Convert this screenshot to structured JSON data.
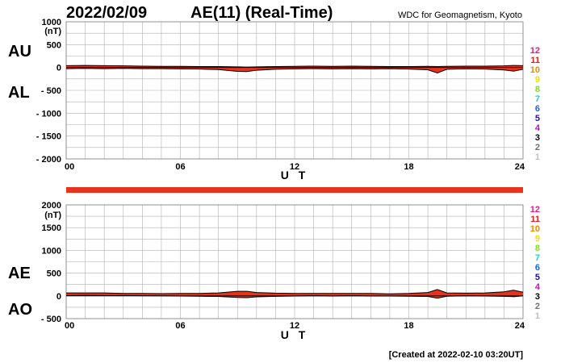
{
  "header": {
    "date": "2022/02/09",
    "title": "AE(11) (Real-Time)",
    "source": "WDC for Geomagnetism, Kyoto"
  },
  "footer": {
    "created": "[Created at 2022-02-10 03:20UT]"
  },
  "colors": {
    "fill": "#e8321c",
    "outline": "#000000",
    "grid": "#b0b0b0",
    "zero_line": "#000000",
    "bar": "#e8321c"
  },
  "station_scale": [
    {
      "label": "12",
      "color": "#e0208a"
    },
    {
      "label": "11",
      "color": "#e02020"
    },
    {
      "label": "10",
      "color": "#f08a00"
    },
    {
      "label": "9",
      "color": "#f0e000"
    },
    {
      "label": "8",
      "color": "#80e020"
    },
    {
      "label": "7",
      "color": "#20d0d0"
    },
    {
      "label": "6",
      "color": "#2060f0"
    },
    {
      "label": "5",
      "color": "#2010b0"
    },
    {
      "label": "4",
      "color": "#c010c0"
    },
    {
      "label": "3",
      "color": "#000000"
    },
    {
      "label": "2",
      "color": "#707070"
    },
    {
      "label": "1",
      "color": "#c0c0c0"
    }
  ],
  "chart_data": [
    {
      "type": "area",
      "panel": "top",
      "labels": [
        "AU",
        "AL"
      ],
      "unit": "(nT)",
      "xlabel": "U T",
      "xlim": [
        0,
        24
      ],
      "xticks": [
        "00",
        "06",
        "12",
        "18",
        "24"
      ],
      "ylim": [
        -2000,
        1000
      ],
      "yticks": [
        {
          "value": 1000,
          "label": "1000"
        },
        {
          "value": 500,
          "label": "500"
        },
        {
          "value": 0,
          "label": "0"
        },
        {
          "value": -500,
          "label": "- 500"
        },
        {
          "value": -1000,
          "label": "- 1000"
        },
        {
          "value": -1500,
          "label": "- 1500"
        },
        {
          "value": -2000,
          "label": "- 2000"
        }
      ],
      "grid": true,
      "x": [
        0,
        1,
        2,
        3,
        4,
        5,
        6,
        7,
        8,
        9,
        9.5,
        10,
        11,
        12,
        13,
        14,
        15,
        16,
        17,
        18,
        19,
        19.5,
        20,
        21,
        22,
        23,
        23.5,
        24
      ],
      "series": [
        {
          "name": "AU",
          "values": [
            40,
            45,
            40,
            35,
            30,
            25,
            25,
            20,
            20,
            15,
            10,
            15,
            20,
            25,
            30,
            25,
            30,
            25,
            20,
            20,
            25,
            20,
            25,
            30,
            30,
            35,
            45,
            40
          ]
        },
        {
          "name": "AL",
          "values": [
            -25,
            -20,
            -25,
            -20,
            -25,
            -25,
            -30,
            -35,
            -45,
            -85,
            -90,
            -60,
            -40,
            -30,
            -25,
            -30,
            -25,
            -30,
            -25,
            -35,
            -50,
            -120,
            -40,
            -30,
            -35,
            -55,
            -80,
            -40
          ]
        }
      ]
    },
    {
      "type": "area",
      "panel": "bottom",
      "labels": [
        "AE",
        "AO"
      ],
      "unit": "(nT)",
      "xlabel": "U T",
      "xlim": [
        0,
        24
      ],
      "xticks": [
        "00",
        "06",
        "12",
        "18",
        "24"
      ],
      "ylim": [
        -500,
        2000
      ],
      "yticks": [
        {
          "value": 2000,
          "label": "2000"
        },
        {
          "value": 1500,
          "label": "1500"
        },
        {
          "value": 1000,
          "label": "1000"
        },
        {
          "value": 500,
          "label": "500"
        },
        {
          "value": 0,
          "label": "0"
        },
        {
          "value": -500,
          "label": "- 500"
        }
      ],
      "grid": true,
      "x": [
        0,
        1,
        2,
        3,
        4,
        5,
        6,
        7,
        8,
        9,
        9.5,
        10,
        11,
        12,
        13,
        14,
        15,
        16,
        17,
        18,
        19,
        19.5,
        20,
        21,
        22,
        23,
        23.5,
        24
      ],
      "series": [
        {
          "name": "AE",
          "values": [
            65,
            65,
            65,
            55,
            55,
            50,
            55,
            55,
            65,
            100,
            100,
            75,
            60,
            55,
            55,
            55,
            55,
            55,
            45,
            55,
            75,
            140,
            65,
            60,
            65,
            90,
            125,
            80
          ]
        },
        {
          "name": "AO",
          "values": [
            8,
            12,
            8,
            8,
            3,
            0,
            -3,
            -8,
            -12,
            -35,
            -40,
            -22,
            -10,
            -3,
            3,
            -3,
            3,
            -3,
            -3,
            -8,
            -12,
            -50,
            -8,
            0,
            -3,
            -10,
            -18,
            0
          ]
        }
      ]
    }
  ]
}
